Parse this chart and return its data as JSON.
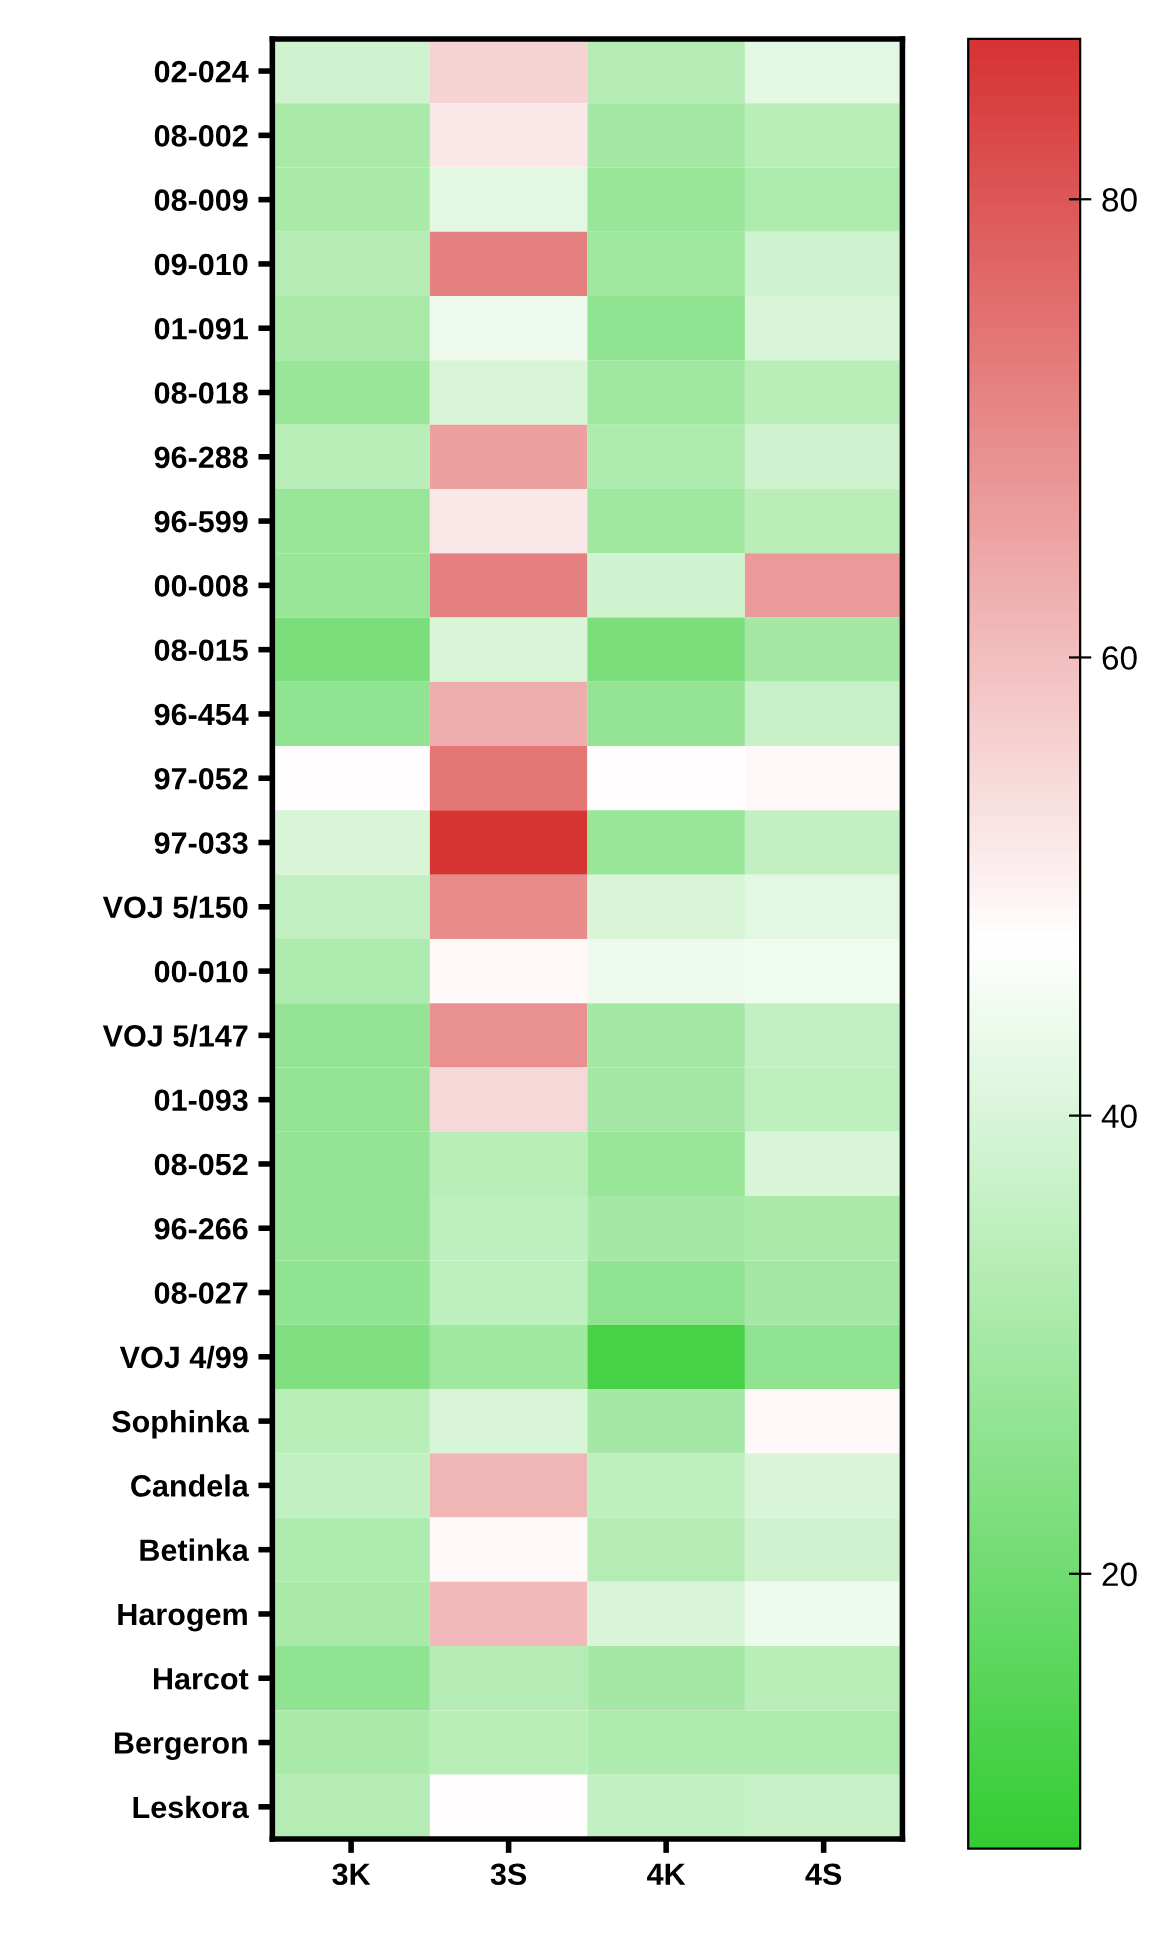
{
  "chart_data": {
    "type": "heatmap",
    "categories": [
      "3K",
      "3S",
      "4K",
      "4S"
    ],
    "y_categories": [
      "02-024",
      "08-002",
      "08-009",
      "09-010",
      "01-091",
      "08-018",
      "96-288",
      "96-599",
      "00-008",
      "08-015",
      "96-454",
      "97-052",
      "97-033",
      "VOJ 5/150",
      "00-010",
      "VOJ 5/147",
      "01-093",
      "08-052",
      "96-266",
      "08-027",
      "VOJ 4/99",
      "Sophinka",
      "Candela",
      "Betinka",
      "Harogem",
      "Harcot",
      "Bergeron",
      "Leskora"
    ],
    "cells": [
      [
        38,
        56,
        33,
        42
      ],
      [
        31,
        52,
        30,
        34
      ],
      [
        31,
        42,
        28,
        32
      ],
      [
        33,
        72,
        29,
        38
      ],
      [
        31,
        44,
        26,
        40
      ],
      [
        28,
        40,
        29,
        34
      ],
      [
        34,
        66,
        32,
        38
      ],
      [
        28,
        52,
        29,
        34
      ],
      [
        28,
        72,
        38,
        67
      ],
      [
        22,
        40,
        22,
        30
      ],
      [
        26,
        63,
        27,
        37
      ],
      [
        48,
        74,
        48,
        49
      ],
      [
        40,
        87,
        28,
        36
      ],
      [
        36,
        70,
        40,
        42
      ],
      [
        32,
        49,
        44,
        45
      ],
      [
        27,
        69,
        30,
        36
      ],
      [
        27,
        55,
        30,
        35
      ],
      [
        27,
        34,
        28,
        40
      ],
      [
        27,
        35,
        30,
        31
      ],
      [
        26,
        35,
        26,
        30
      ],
      [
        23,
        29,
        12,
        26
      ],
      [
        34,
        40,
        30,
        49
      ],
      [
        36,
        62,
        35,
        40
      ],
      [
        32,
        49,
        33,
        38
      ],
      [
        31,
        61,
        40,
        44
      ],
      [
        26,
        33,
        30,
        34
      ],
      [
        31,
        34,
        32,
        32
      ],
      [
        33,
        48,
        36,
        37
      ]
    ],
    "clim": [
      8,
      87
    ],
    "cticks": [
      20,
      40,
      60,
      80
    ],
    "colors": [
      "#33cc33",
      "#ffffff",
      "#d63333"
    ]
  }
}
